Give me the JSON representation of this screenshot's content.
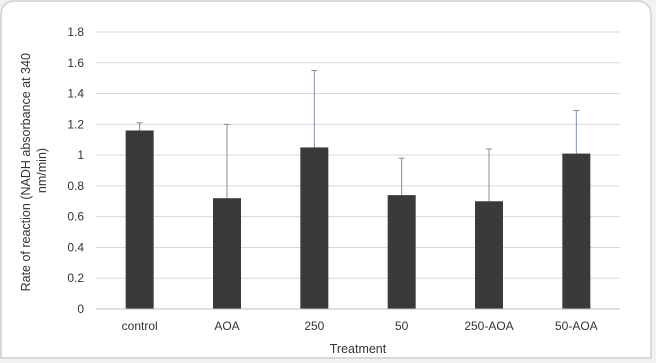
{
  "chart_data": {
    "type": "bar",
    "categories": [
      "control",
      "AOA",
      "250",
      "50",
      "250-AOA",
      "50-AOA"
    ],
    "values": [
      1.16,
      0.72,
      1.05,
      0.74,
      0.7,
      1.01
    ],
    "error_bars": [
      0.05,
      0.48,
      0.5,
      0.24,
      0.34,
      0.28
    ],
    "xlabel": "Treatment",
    "ylabel": "Rate of reaction (NADH absorbance at 340 nm/min)",
    "ylabel_lines": [
      "Rate of reaction (NADH absorbance at 340",
      "nm/min)"
    ],
    "ylim": [
      0,
      1.8
    ],
    "yticks": [
      "0",
      "0.2",
      "0.4",
      "0.6",
      "0.8",
      "1",
      "1.2",
      "1.4",
      "1.6",
      "1.8"
    ],
    "grid": true,
    "legend": "none",
    "bar_color": "#3a3a3a",
    "grid_color": "#d9d9d9"
  }
}
